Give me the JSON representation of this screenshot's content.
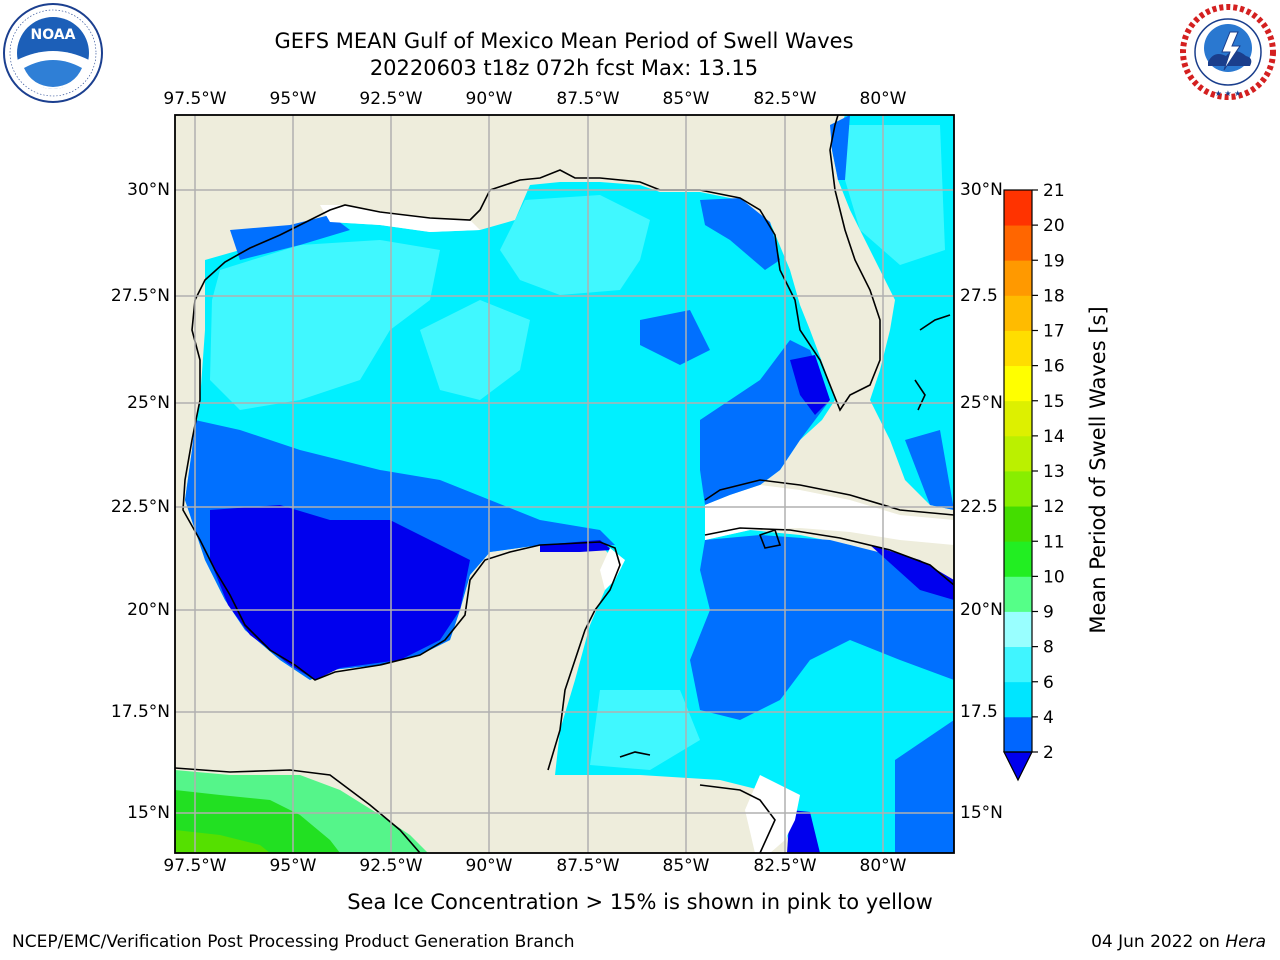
{
  "header": {
    "title_line1": "GEFS MEAN Gulf of Mexico Mean Period of Swell Waves",
    "title_line2": "20220603 t18z 072h fcst   Max: 13.15"
  },
  "logos": {
    "left": {
      "icon": "noaa-logo-icon",
      "text": "NOAA",
      "ring_text": "NATIONAL OCEANIC AND ATMOSPHERIC ADMINISTRATION · U.S. DEPARTMENT OF COMMERCE"
    },
    "right": {
      "icon": "nws-logo-icon",
      "ring_text": "NATIONAL WEATHER SERVICE"
    }
  },
  "map": {
    "lon_ticks": [
      "97.5°W",
      "95°W",
      "92.5°W",
      "90°W",
      "87.5°W",
      "85°W",
      "82.5°W",
      "80°W"
    ],
    "lat_ticks_left": [
      "30°N",
      "27.5°N",
      "25°N",
      "22.5°N",
      "20°N",
      "17.5°N",
      "15°N"
    ],
    "lat_ticks_right": [
      "30°N",
      "27.5",
      "25°N",
      "22.5",
      "20°N",
      "17.5",
      "15°N"
    ],
    "land_color": "#eeeddc",
    "grid_color": "#b0b0b0"
  },
  "colorbar": {
    "label": "Mean Period of Swell Waves [s]",
    "ticks": [
      "2",
      "4",
      "6",
      "8",
      "9",
      "10",
      "11",
      "12",
      "13",
      "14",
      "15",
      "16",
      "17",
      "18",
      "19",
      "20",
      "21"
    ],
    "colors": [
      "#0066ff",
      "#00e5ff",
      "#40f5ff",
      "#99ffff",
      "#55ff88",
      "#22ee22",
      "#44dd00",
      "#88ee00",
      "#bbf000",
      "#ddf000",
      "#ffff00",
      "#ffdd00",
      "#ffbb00",
      "#ff9900",
      "#ff6600",
      "#ff3300"
    ],
    "extend_color": "#0000ee"
  },
  "notes": {
    "sea_ice": "Sea Ice Concentration > 15% is shown in pink to yellow"
  },
  "footer": {
    "left": "NCEP/EMC/Verification Post Processing Product Generation Branch",
    "right_date": "04 Jun 2022 on ",
    "right_host": "Hera"
  }
}
